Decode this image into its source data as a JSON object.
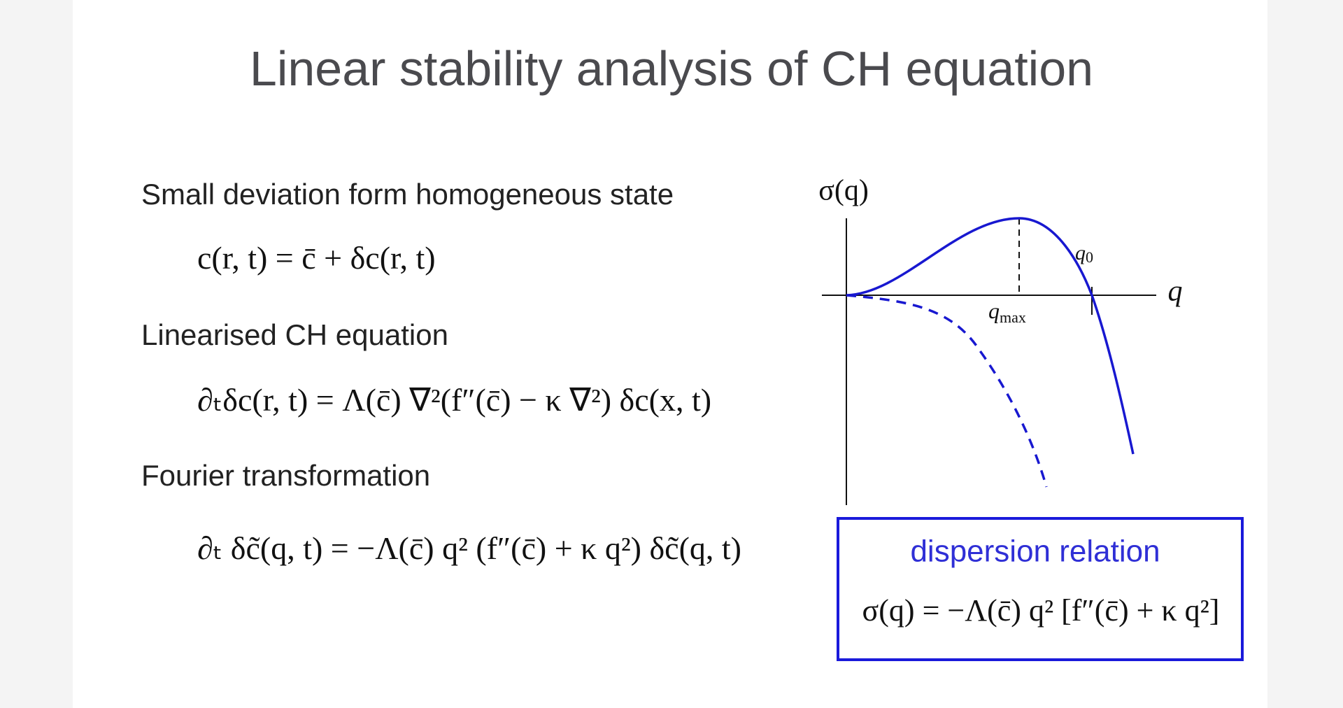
{
  "header": {
    "title": "Linear stability analysis of CH equation"
  },
  "sections": [
    {
      "heading": "Small deviation form homogeneous state",
      "equation": "c(r, t) = c̄ + δc(r, t)"
    },
    {
      "heading": "Linearised CH equation",
      "equation": "∂ₜδc(r, t) = Λ(c̄) ∇²(f″(c̄) − κ ∇²) δc(x, t)"
    },
    {
      "heading": "Fourier transformation",
      "equation": "∂ₜ δc̃(q, t) = −Λ(c̄) q² (f″(c̄) + κ q²) δc̃(q, t)"
    }
  ],
  "graph": {
    "y_label": "σ(q)",
    "x_label": "q",
    "peak_label": {
      "base": "q",
      "sub": "max"
    },
    "root_label": {
      "base": "q",
      "sub": "0"
    }
  },
  "box": {
    "title": "dispersion relation",
    "equation": "σ(q) = −Λ(c̄) q² [f″(c̄) + κ q²]"
  }
}
